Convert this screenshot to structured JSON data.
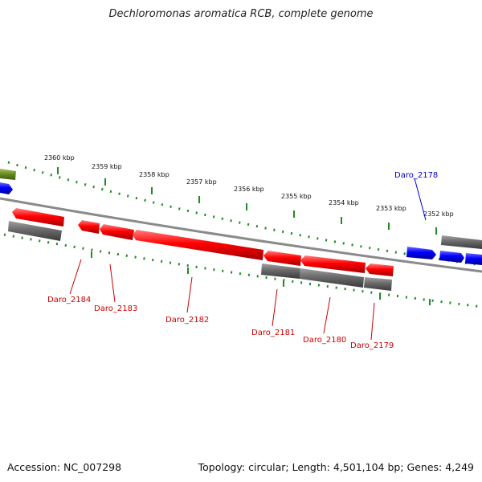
{
  "title": "Dechloromonas aromatica RCB, complete genome",
  "footer": {
    "accession": "Accession: NC_007298",
    "summary": "Topology: circular; Length: 4,501,104 bp; Genes: 4,249"
  },
  "scale_labels": [
    "2360 kbp",
    "2359 kbp",
    "2358 kbp",
    "2357 kbp",
    "2356 kbp",
    "2355 kbp",
    "2354 kbp",
    "2353 kbp",
    "2352 kbp"
  ],
  "gene_labels": {
    "daro_2178": "Daro_2178",
    "daro_2179": "Daro_2179",
    "daro_2180": "Daro_2180",
    "daro_2181": "Daro_2181",
    "daro_2182": "Daro_2182",
    "daro_2183": "Daro_2183",
    "daro_2184": "Daro_2184"
  },
  "colors": {
    "red_gene": "#ff0000",
    "blue_gene": "#0000ff",
    "green_gene": "#6b8e23",
    "grey_gene": "#666666",
    "backbone": "#888888",
    "scale_ticks": "#228b22",
    "red_label": "#cc0000",
    "blue_label": "#0000cc"
  }
}
